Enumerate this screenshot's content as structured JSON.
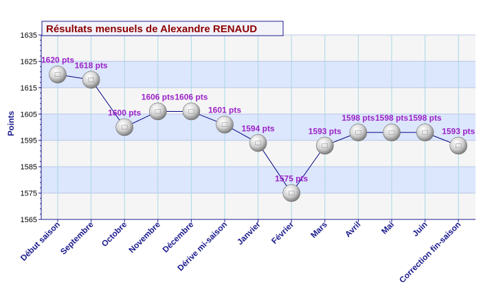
{
  "chart_data": {
    "type": "line",
    "title": "Résultats mensuels de Alexandre RENAUD",
    "xlabel": "",
    "ylabel": "Points",
    "ylim": [
      1565,
      1635
    ],
    "yticks": [
      1565,
      1575,
      1585,
      1595,
      1605,
      1615,
      1625,
      1635
    ],
    "grid": true,
    "categories": [
      "Début saison",
      "Septembre",
      "Octobre",
      "Novembre",
      "Décembre",
      "Dérive mi-saison",
      "Janvier",
      "Février",
      "Mars",
      "Avril",
      "Mai",
      "Juin",
      "Correction fin-saison"
    ],
    "series": [
      {
        "values": [
          1620,
          1618,
          1600,
          1606,
          1606,
          1601,
          1594,
          1575,
          1593,
          1598,
          1598,
          1598,
          1593
        ],
        "labels": [
          "1620 pts",
          "1618 pts",
          "1600 pts",
          "1606 pts",
          "1606 pts",
          "1601 pts",
          "1594 pts",
          "1575 pts",
          "1593 pts",
          "1598 pts",
          "1598 pts",
          "1598 pts",
          "1593 pts"
        ]
      }
    ],
    "colors": {
      "line": "#000080",
      "data_label": "#9b22c8",
      "category_label": "#1a1a8c",
      "title": "#8b0000",
      "band": "#dce6fc",
      "plot_bg": "#f5f5f5",
      "grid_vertical": "#a8d8e8"
    }
  }
}
